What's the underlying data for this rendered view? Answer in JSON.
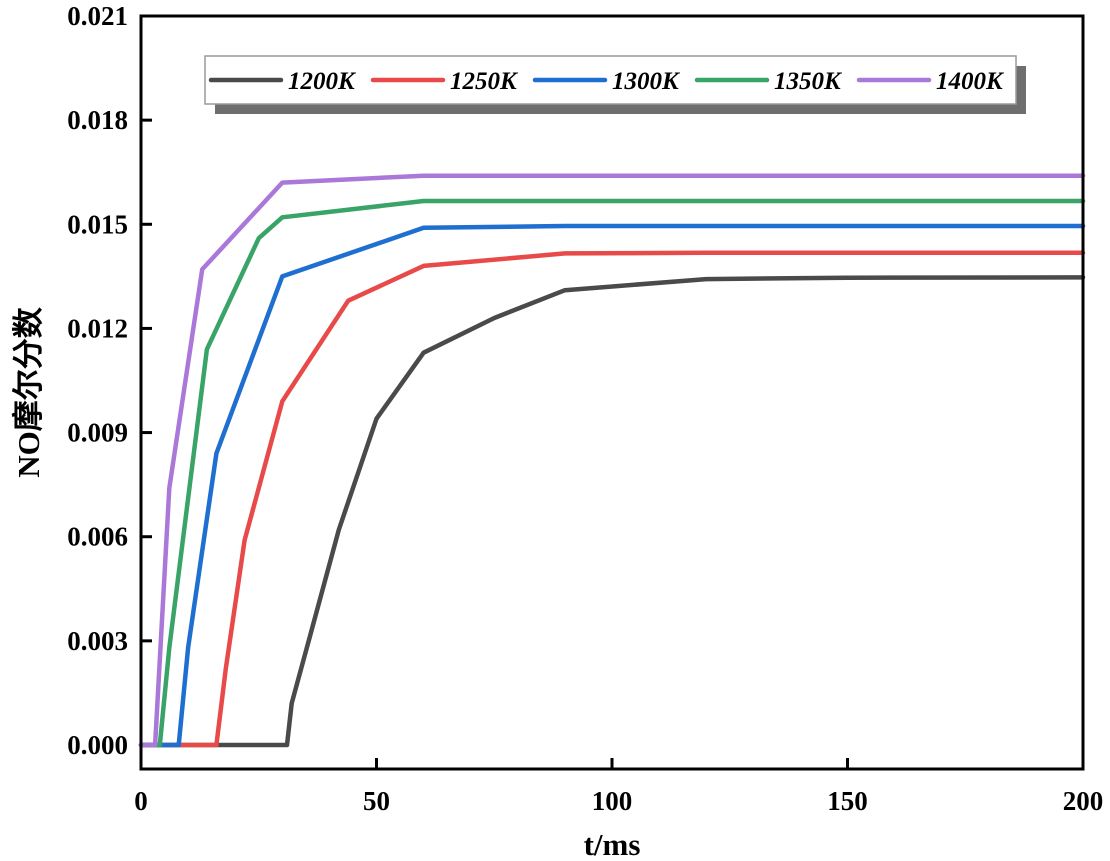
{
  "chart_data": {
    "type": "line",
    "title": "",
    "xlabel": "t/ms",
    "ylabel": "NO摩尔分数",
    "xlim": [
      0,
      200
    ],
    "ylim": [
      0,
      0.021
    ],
    "x_ticks": [
      0,
      50,
      100,
      150,
      200
    ],
    "x_tick_labels": [
      "0",
      "50",
      "100",
      "150",
      "200"
    ],
    "y_ticks": [
      0,
      0.003,
      0.006,
      0.009,
      0.012,
      0.015,
      0.018,
      0.021
    ],
    "y_tick_labels": [
      "0.000",
      "0.003",
      "0.006",
      "0.009",
      "0.012",
      "0.015",
      "0.018",
      "0.021"
    ],
    "grid": false,
    "legend_position": "top",
    "series": [
      {
        "name": "1200K",
        "color": "#4a4a4a",
        "x": [
          0,
          31,
          32,
          36,
          42,
          50,
          60,
          75,
          90,
          120,
          150,
          200
        ],
        "y": [
          0,
          0,
          0.0012,
          0.0032,
          0.0062,
          0.0094,
          0.0113,
          0.0123,
          0.0131,
          0.01342,
          0.01346,
          0.01347
        ]
      },
      {
        "name": "1250K",
        "color": "#e84a4a",
        "x": [
          0,
          16,
          18,
          22,
          30,
          44,
          60,
          90,
          120,
          150,
          200
        ],
        "y": [
          0,
          0,
          0.0022,
          0.0059,
          0.0099,
          0.0128,
          0.0138,
          0.01416,
          0.01418,
          0.01418,
          0.01418
        ]
      },
      {
        "name": "1300K",
        "color": "#1f6fd0",
        "x": [
          0,
          8,
          10,
          16,
          30,
          60,
          90,
          150,
          200
        ],
        "y": [
          0,
          0,
          0.0028,
          0.0084,
          0.0135,
          0.0149,
          0.01495,
          0.01495,
          0.01495
        ]
      },
      {
        "name": "1350K",
        "color": "#3aa468",
        "x": [
          0,
          4,
          6,
          14,
          25,
          30,
          60,
          90,
          200
        ],
        "y": [
          0,
          0,
          0.0028,
          0.0114,
          0.0146,
          0.0152,
          0.01567,
          0.01567,
          0.01567
        ]
      },
      {
        "name": "1400K",
        "color": "#aa78d8",
        "x": [
          0,
          3,
          6,
          13,
          30,
          60,
          90,
          200
        ],
        "y": [
          0,
          0,
          0.0074,
          0.0137,
          0.0162,
          0.0164,
          0.0164,
          0.0164
        ]
      }
    ]
  }
}
